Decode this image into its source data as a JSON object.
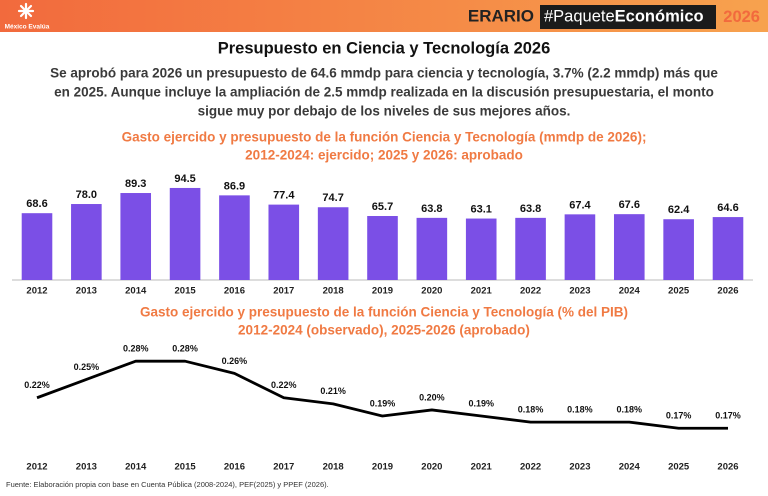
{
  "header": {
    "brand": "México Evalúa",
    "erario": "ERARIO",
    "hashtag": "#Paquete",
    "hashtag_bold": "Económico",
    "year": "2026"
  },
  "title": "Presupuesto en Ciencia y Tecnología 2026",
  "summary": [
    "Se aprobó para 2026 un presupuesto de 64.6 mmdp para ciencia y tecnología, 3.7% (2.2 mmdp) más que",
    "en 2025. Aunque incluye la ampliación de 2.5 mmdp realizada en la discusión presupuestaria, el monto",
    "sigue muy por debajo de los niveles de sus mejores años."
  ],
  "chart_data": [
    {
      "type": "bar",
      "title": [
        "Gasto ejercido y presupuesto de la función Ciencia y Tecnología (mmdp de 2026);",
        "2012-2024: ejercido; 2025 y 2026: aprobado"
      ],
      "categories": [
        "2012",
        "2013",
        "2014",
        "2015",
        "2016",
        "2017",
        "2018",
        "2019",
        "2020",
        "2021",
        "2022",
        "2023",
        "2024",
        "2025",
        "2026"
      ],
      "values": [
        68.6,
        78.0,
        89.3,
        94.5,
        86.9,
        77.4,
        74.7,
        65.7,
        63.8,
        63.1,
        63.8,
        67.4,
        67.6,
        62.4,
        64.6
      ],
      "value_labels": [
        "68.6",
        "78.0",
        "89.3",
        "94.5",
        "86.9",
        "77.4",
        "74.7",
        "65.7",
        "63.8",
        "63.1",
        "63.8",
        "67.4",
        "67.6",
        "62.4",
        "64.6"
      ],
      "color": "#7b4fe6",
      "ylim": [
        0,
        100
      ]
    },
    {
      "type": "line",
      "title": [
        "Gasto ejercido y presupuesto de la función Ciencia y Tecnología (% del PIB)",
        "2012-2024 (observado), 2025-2026 (aprobado)"
      ],
      "categories": [
        "2012",
        "2013",
        "2014",
        "2015",
        "2016",
        "2017",
        "2018",
        "2019",
        "2020",
        "2021",
        "2022",
        "2023",
        "2024",
        "2025",
        "2026"
      ],
      "values": [
        0.22,
        0.25,
        0.28,
        0.28,
        0.26,
        0.22,
        0.21,
        0.19,
        0.2,
        0.19,
        0.18,
        0.18,
        0.18,
        0.17,
        0.17
      ],
      "value_labels": [
        "0.22%",
        "0.25%",
        "0.28%",
        "0.28%",
        "0.26%",
        "0.22%",
        "0.21%",
        "0.19%",
        "0.20%",
        "0.19%",
        "0.18%",
        "0.18%",
        "0.18%",
        "0.17%",
        "0.17%"
      ],
      "color": "#000000",
      "ylim": [
        0.14,
        0.3
      ]
    }
  ],
  "source": "Fuente: Elaboración propia con base en Cuenta Pública (2008-2024), PEF(2025) y PPEF (2026)."
}
